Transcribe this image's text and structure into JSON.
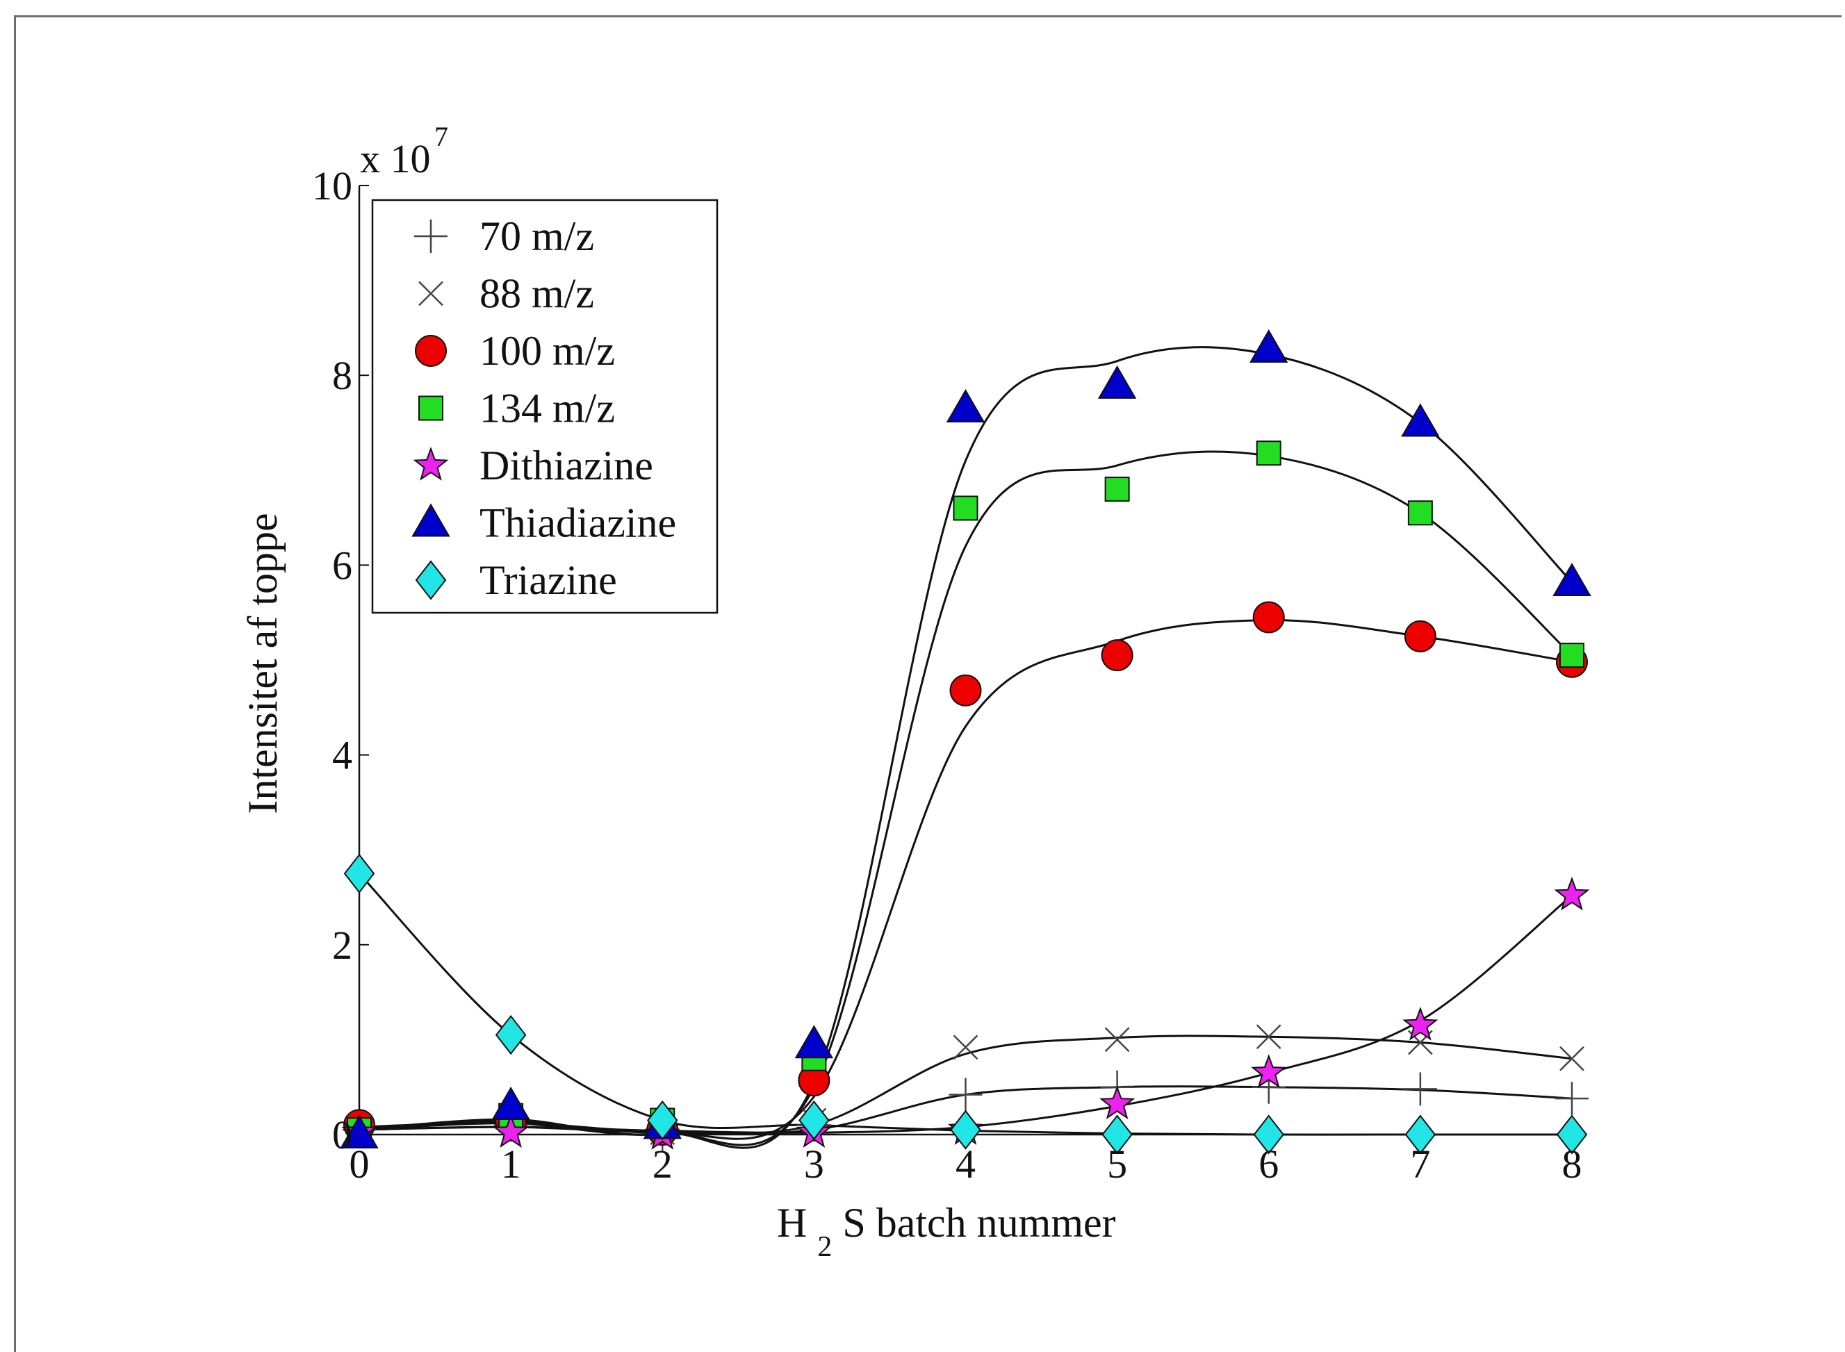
{
  "chart_data": {
    "type": "scatter",
    "title": "",
    "xlabel_main": "H",
    "xlabel_sub": "2",
    "xlabel_rest": "S batch nummer",
    "ylabel": "Intensitet af toppe",
    "y_multiplier": {
      "base": "x 10",
      "exponent": "7"
    },
    "xlim": [
      0,
      8
    ],
    "ylim": [
      0,
      10
    ],
    "x_ticks": [
      "0",
      "1",
      "2",
      "3",
      "4",
      "5",
      "6",
      "7",
      "8"
    ],
    "y_ticks": [
      "0",
      "2",
      "4",
      "6",
      "8",
      "10"
    ],
    "grid": false,
    "legend_position": "top-left",
    "x": [
      0,
      1,
      2,
      3,
      4,
      5,
      6,
      7,
      8
    ],
    "series": [
      {
        "name": "70 m/z",
        "marker": "plus",
        "color": "#444444",
        "values": [
          0.05,
          0.1,
          0.0,
          0.1,
          0.42,
          0.5,
          0.5,
          0.48,
          0.38
        ],
        "fit": [
          0.05,
          0.08,
          0.02,
          0.05,
          0.42,
          0.5,
          0.5,
          0.47,
          0.38
        ]
      },
      {
        "name": "88 m/z",
        "marker": "cross",
        "color": "#444444",
        "values": [
          0.05,
          0.15,
          0.02,
          0.15,
          0.92,
          1.0,
          1.03,
          0.97,
          0.8
        ],
        "fit": [
          0.05,
          0.12,
          0.03,
          0.1,
          0.85,
          1.02,
          1.03,
          0.97,
          0.8
        ]
      },
      {
        "name": "100 m/z",
        "marker": "circle",
        "color": "#ee0000",
        "values": [
          0.1,
          0.15,
          0.05,
          0.57,
          4.68,
          5.05,
          5.45,
          5.25,
          4.98
        ],
        "fit": [
          0.08,
          0.12,
          0.01,
          0.4,
          4.3,
          5.2,
          5.42,
          5.25,
          4.98
        ]
      },
      {
        "name": "134 m/z",
        "marker": "square",
        "color": "#22dd22",
        "values": [
          0.05,
          0.2,
          0.15,
          0.8,
          6.6,
          6.8,
          7.18,
          6.55,
          5.05
        ],
        "fit": [
          0.05,
          0.14,
          0.01,
          0.5,
          6.2,
          7.05,
          7.15,
          6.55,
          5.05
        ]
      },
      {
        "name": "Dithiazine",
        "marker": "star",
        "color": "#ee22ee",
        "values": [
          0.02,
          0.02,
          0.0,
          0.02,
          0.05,
          0.32,
          0.65,
          1.15,
          2.52
        ],
        "fit": [
          0.05,
          0.08,
          0.04,
          0.02,
          0.08,
          0.3,
          0.65,
          1.2,
          2.52
        ]
      },
      {
        "name": "Thiadiazine",
        "marker": "triangle",
        "color": "#0000cc",
        "values": [
          0.0,
          0.3,
          0.1,
          0.95,
          7.65,
          7.9,
          8.28,
          7.5,
          5.82
        ],
        "fit": [
          0.05,
          0.16,
          0.01,
          0.55,
          7.1,
          8.15,
          8.22,
          7.5,
          5.82
        ]
      },
      {
        "name": "Triazine",
        "marker": "diamond",
        "color": "#22e6e6",
        "values": [
          2.75,
          1.05,
          0.15,
          0.15,
          0.05,
          0.0,
          0.0,
          0.0,
          0.0
        ],
        "fit": [
          2.75,
          1.05,
          0.15,
          0.1,
          0.04,
          0.01,
          0.0,
          0.0,
          0.0
        ]
      }
    ]
  }
}
